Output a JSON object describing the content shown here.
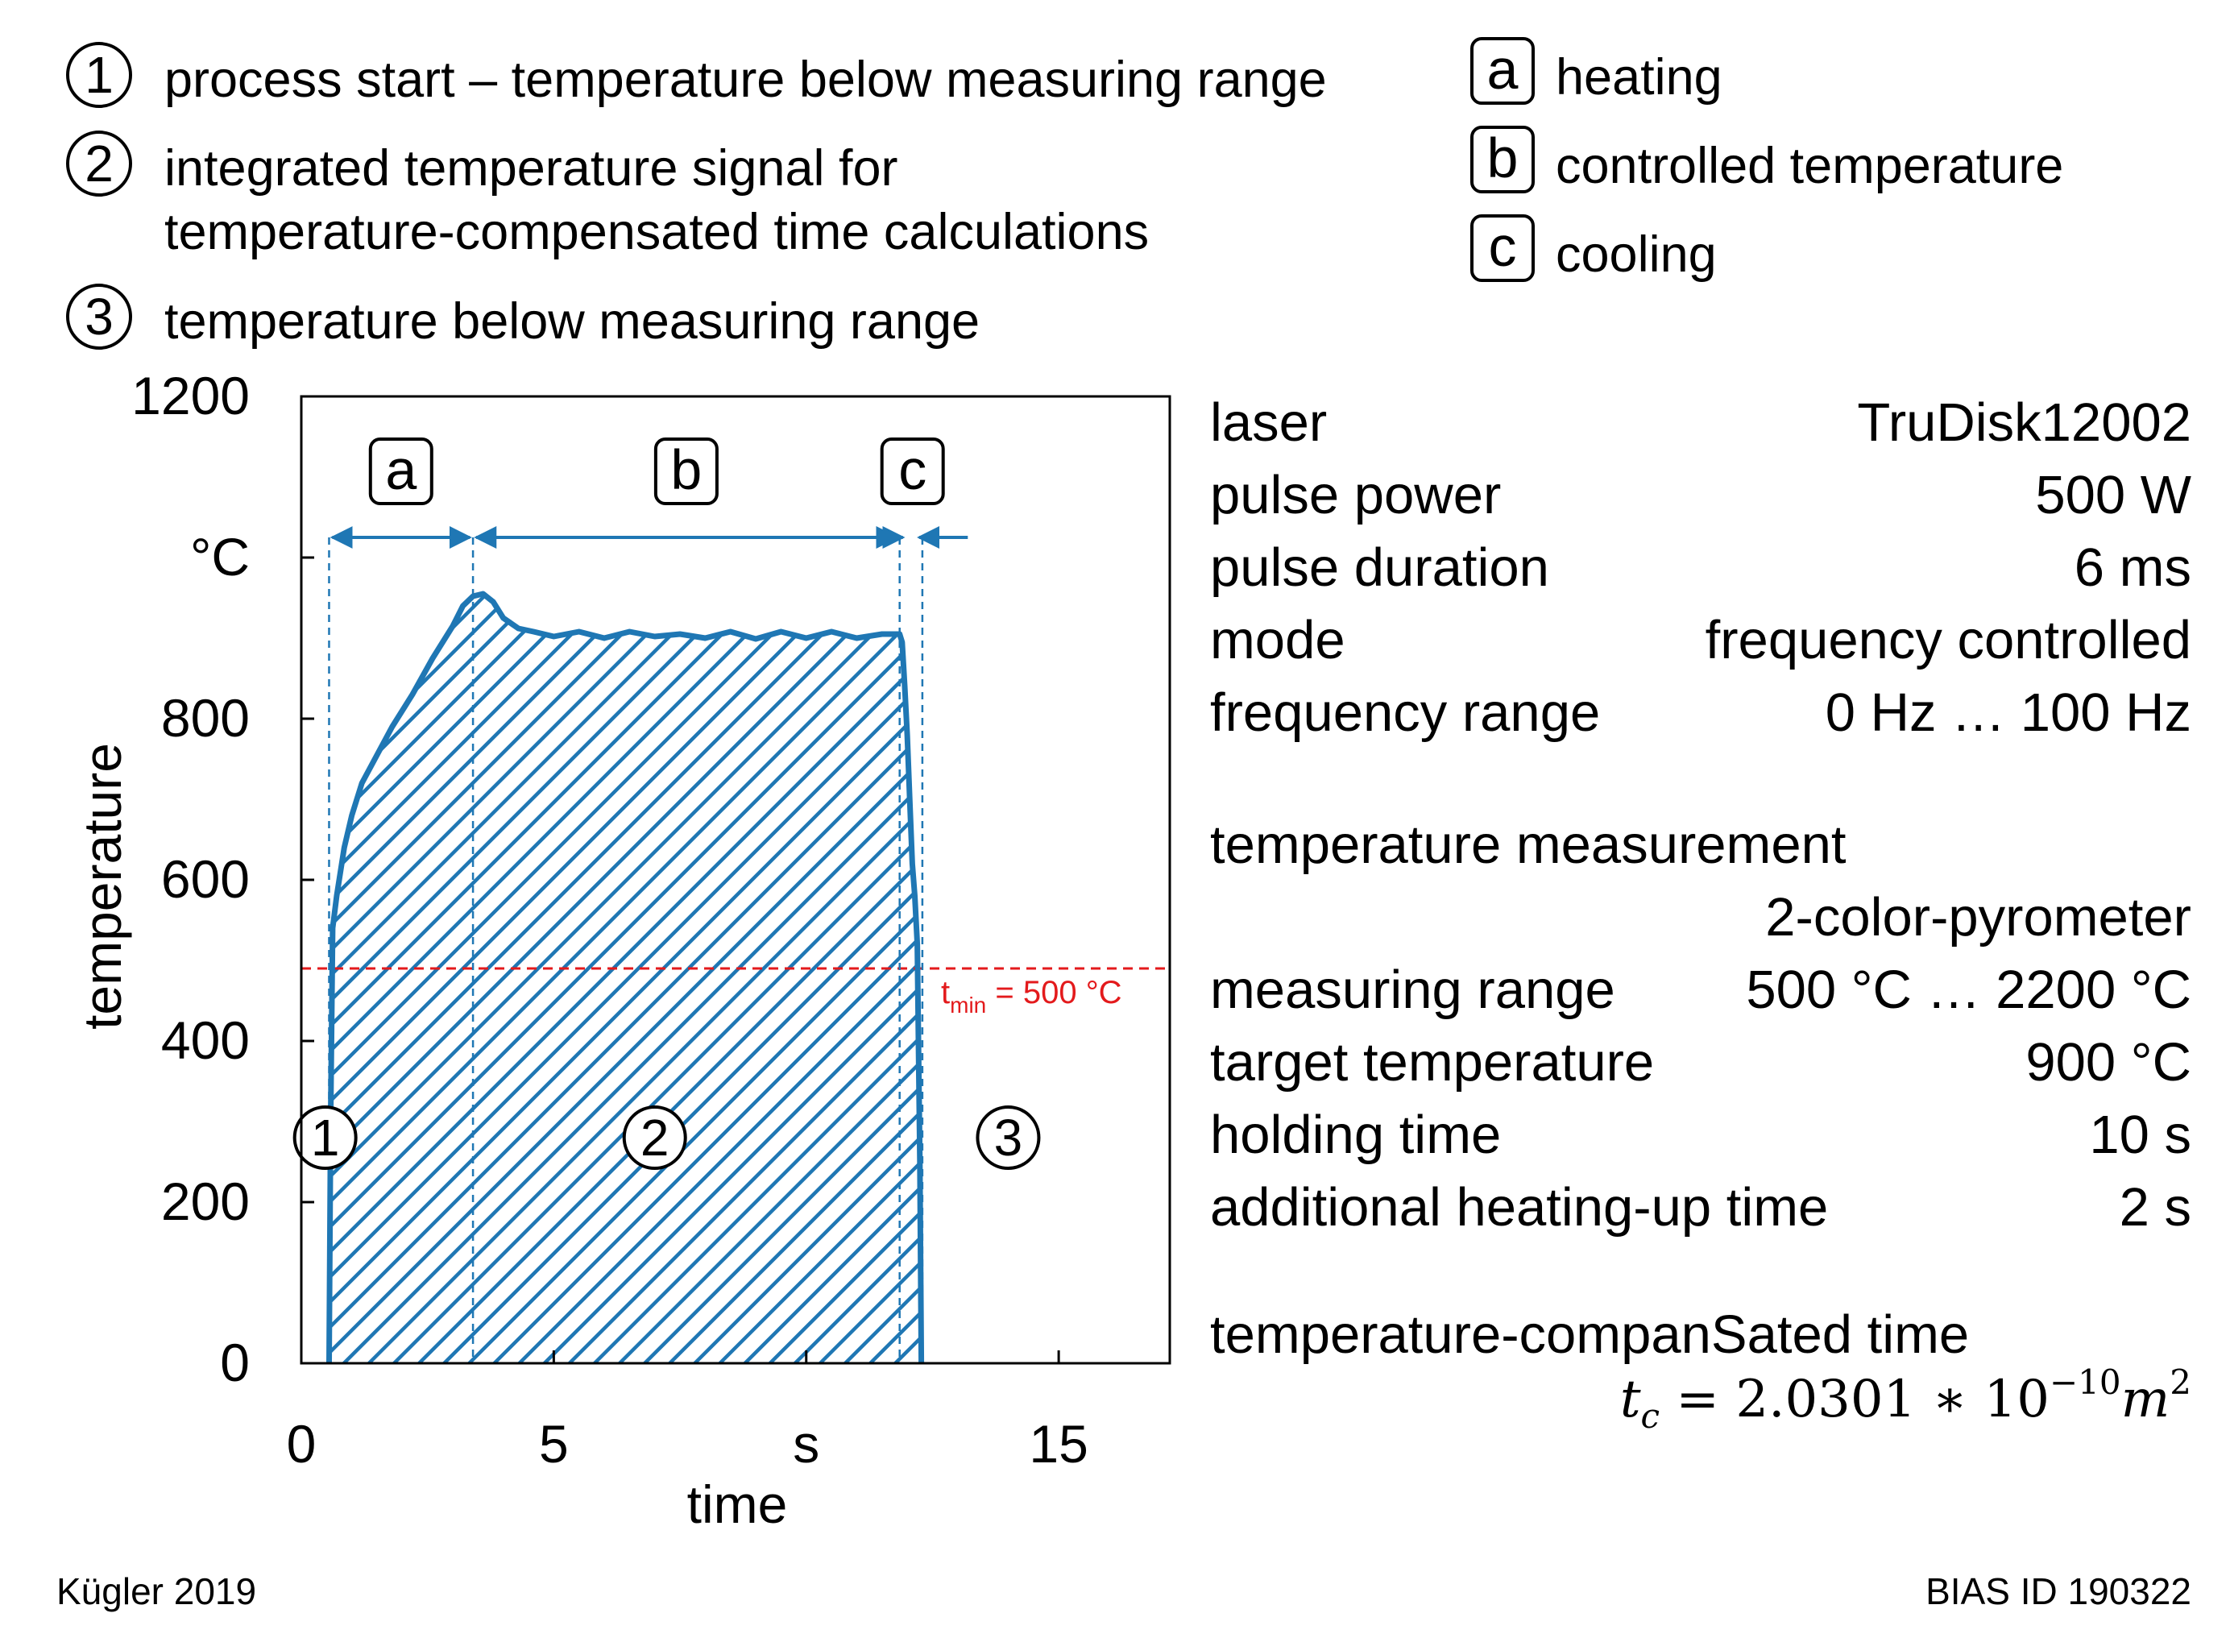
{
  "legend_numbered": [
    {
      "mark": "1",
      "text": "process start – temperature below measuring range"
    },
    {
      "mark": "2",
      "text": "integrated temperature signal for"
    },
    {
      "mark": "",
      "text": "temperature-compensated time calculations"
    },
    {
      "mark": "3",
      "text": "temperature below measuring range"
    }
  ],
  "legend_lettered": [
    {
      "mark": "a",
      "text": "heating"
    },
    {
      "mark": "b",
      "text": "controlled temperature"
    },
    {
      "mark": "c",
      "text": "cooling"
    }
  ],
  "parameters": [
    {
      "key": "laser",
      "value": "TruDisk12002"
    },
    {
      "key": "pulse power",
      "value": "500 W"
    },
    {
      "key": "pulse duration",
      "value": "6 ms"
    },
    {
      "key": "mode",
      "value": "frequency controlled"
    },
    {
      "key": "frequency range",
      "value": "0 Hz … 100 Hz"
    }
  ],
  "measurement": {
    "heading": "temperature measurement",
    "device": "2-color-pyrometer",
    "rows": [
      {
        "key": "measuring range",
        "value": "500 °C … 2200 °C"
      },
      {
        "key": "target temperature",
        "value": "900 °C"
      },
      {
        "key": "holding time",
        "value": "10 s"
      },
      {
        "key": "additional heating-up time",
        "value": "2 s"
      }
    ]
  },
  "result": {
    "heading": "temperature-companSated time",
    "formula_lhs": "t",
    "formula_lhs_sub": "c",
    "formula_rhs": "= 2.0301 ∗ 10",
    "formula_exp": "−10",
    "formula_unit": "m",
    "formula_unit_exp": "2"
  },
  "footer": {
    "left": "Kügler 2019",
    "right": "BIAS ID 190322"
  },
  "colors": {
    "curve": "#1f77b4",
    "threshold": "#e31a1c",
    "text": "#000000"
  },
  "chart_data": {
    "type": "line",
    "title": "",
    "xlabel": "time",
    "ylabel": "temperature",
    "x_unit_label": "s",
    "y_unit_label": "°C",
    "xlim": [
      0,
      17.2
    ],
    "ylim": [
      0,
      1200
    ],
    "x_ticks": [
      {
        "v": 0,
        "label": "0"
      },
      {
        "v": 5,
        "label": "5"
      },
      {
        "v": 10,
        "label": "s"
      },
      {
        "v": 15,
        "label": "15"
      }
    ],
    "y_ticks": [
      {
        "v": 0,
        "label": "0"
      },
      {
        "v": 200,
        "label": "200"
      },
      {
        "v": 400,
        "label": "400"
      },
      {
        "v": 600,
        "label": "600"
      },
      {
        "v": 800,
        "label": "800"
      },
      {
        "v": 1000,
        "label": "°C"
      },
      {
        "v": 1200,
        "label": "1200"
      }
    ],
    "series": [
      {
        "name": "temperature",
        "x": [
          0.55,
          0.58,
          0.62,
          0.7,
          0.85,
          1.0,
          1.2,
          1.5,
          1.8,
          2.2,
          2.6,
          3.0,
          3.2,
          3.4,
          3.6,
          3.8,
          4.0,
          4.3,
          4.6,
          5.0,
          5.5,
          6.0,
          6.5,
          7.0,
          7.5,
          8.0,
          8.5,
          9.0,
          9.5,
          10.0,
          10.5,
          11.0,
          11.5,
          11.85,
          11.9,
          11.95,
          12.0,
          12.05,
          12.1,
          12.15,
          12.2,
          12.25,
          12.28
        ],
        "y": [
          0,
          300,
          540,
          580,
          640,
          680,
          720,
          755,
          790,
          830,
          875,
          915,
          940,
          952,
          955,
          945,
          925,
          915,
          905,
          905,
          905,
          903,
          905,
          905,
          902,
          903,
          905,
          902,
          905,
          903,
          905,
          903,
          902,
          905,
          895,
          840,
          780,
          700,
          620,
          580,
          520,
          250,
          0
        ]
      }
    ],
    "threshold": {
      "y": 490,
      "label": "t",
      "label_sub": "min",
      "label_tail": "= 500 °C"
    },
    "area_labels": [
      {
        "mark": "1",
        "x": 0.25,
        "y": 280
      },
      {
        "mark": "2",
        "x": 7,
        "y": 280
      },
      {
        "mark": "3",
        "x": 14,
        "y": 280
      }
    ],
    "phases": [
      {
        "mark": "a",
        "x_start": 0.55,
        "x_end": 3.4
      },
      {
        "mark": "b",
        "x_start": 3.4,
        "x_end": 11.85
      },
      {
        "mark": "c",
        "x_start": 11.85,
        "x_end": 12.3
      }
    ],
    "phase_arrow_y": 1025,
    "phase_arrow_tail_x": 13.2
  }
}
